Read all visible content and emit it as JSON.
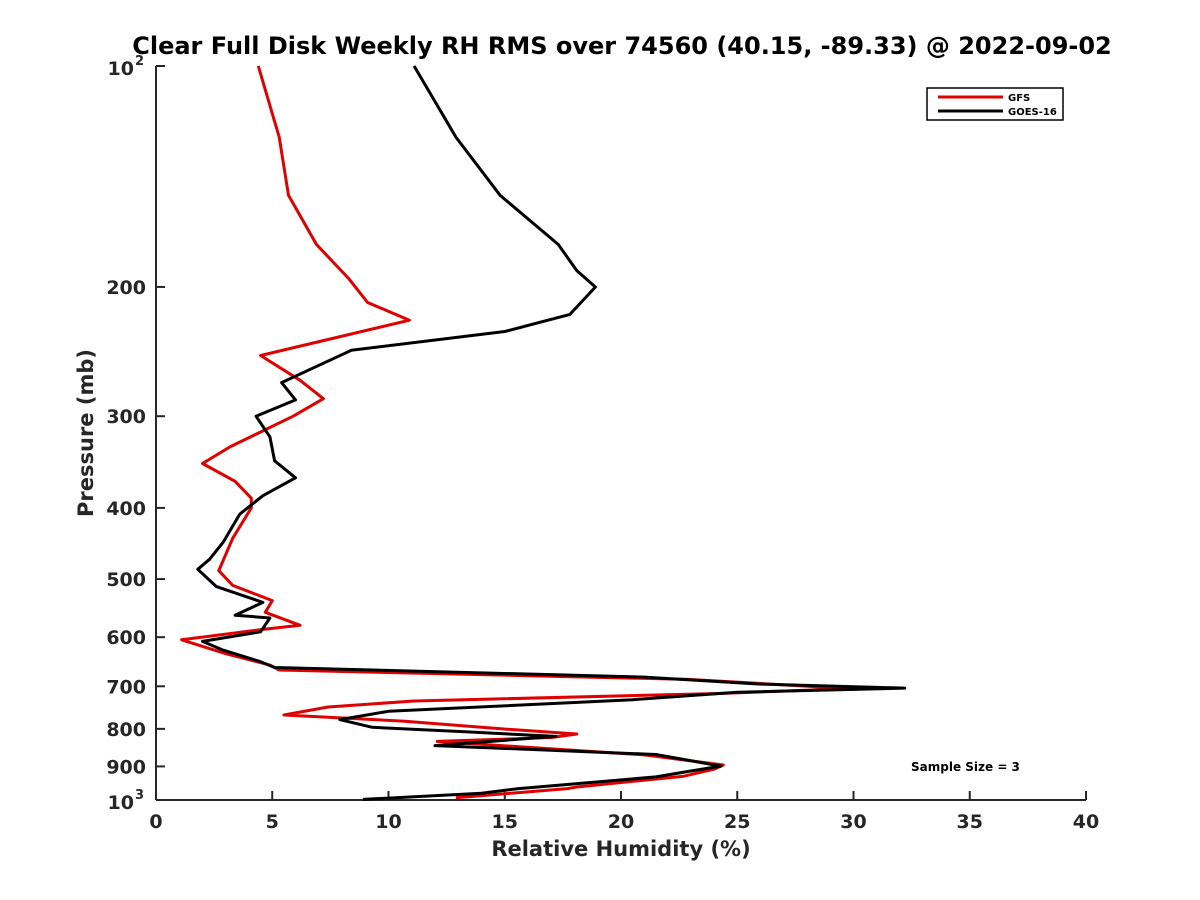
{
  "chart_data": {
    "type": "line",
    "title": "Clear Full Disk Weekly RH RMS over 74560 (40.15, -89.33) @ 2022-09-02",
    "xlabel": "Relative Humidity (%)",
    "ylabel": "Pressure (mb)",
    "xlim": [
      0,
      40
    ],
    "ylim": [
      100,
      1000
    ],
    "y_scale": "log",
    "y_reversed": true,
    "grid": false,
    "legend_position": "top-right",
    "x_ticks": [
      "0",
      "5",
      "10",
      "15",
      "20",
      "25",
      "30",
      "35",
      "40"
    ],
    "y_ticks": [
      {
        "value": 100,
        "label": "10",
        "exponent": "2"
      },
      {
        "value": 200,
        "label": "200"
      },
      {
        "value": 300,
        "label": "300"
      },
      {
        "value": 400,
        "label": "400"
      },
      {
        "value": 500,
        "label": "500"
      },
      {
        "value": 600,
        "label": "600"
      },
      {
        "value": 700,
        "label": "700"
      },
      {
        "value": 800,
        "label": "800"
      },
      {
        "value": 900,
        "label": "900"
      },
      {
        "value": 1000,
        "label": "10",
        "exponent": "3"
      }
    ],
    "series": [
      {
        "name": "GFS",
        "color": "#e00000",
        "points": [
          [
            4.4,
            100
          ],
          [
            5.3,
            125
          ],
          [
            5.7,
            150
          ],
          [
            6.9,
            175
          ],
          [
            8.3,
            195
          ],
          [
            9.1,
            210
          ],
          [
            10.9,
            222
          ],
          [
            4.5,
            248
          ],
          [
            6.2,
            268
          ],
          [
            7.2,
            284
          ],
          [
            5.9,
            300
          ],
          [
            3.2,
            330
          ],
          [
            2.0,
            348
          ],
          [
            3.4,
            368
          ],
          [
            4.1,
            388
          ],
          [
            4.1,
            400
          ],
          [
            3.3,
            440
          ],
          [
            2.7,
            487
          ],
          [
            3.3,
            510
          ],
          [
            5.0,
            535
          ],
          [
            4.7,
            555
          ],
          [
            6.2,
            578
          ],
          [
            4.7,
            585
          ],
          [
            1.1,
            605
          ],
          [
            3.0,
            632
          ],
          [
            4.9,
            655
          ],
          [
            5.3,
            665
          ],
          [
            22.9,
            685
          ],
          [
            29.8,
            705
          ],
          [
            24.2,
            716
          ],
          [
            11.1,
            733
          ],
          [
            7.4,
            747
          ],
          [
            5.5,
            766
          ],
          [
            10.7,
            781
          ],
          [
            14.9,
            800
          ],
          [
            18.1,
            813
          ],
          [
            17.0,
            822
          ],
          [
            12.1,
            832
          ],
          [
            21.0,
            868
          ],
          [
            24.4,
            896
          ],
          [
            24.0,
            908
          ],
          [
            22.7,
            928
          ],
          [
            18.1,
            960
          ],
          [
            17.7,
            965
          ],
          [
            12.9,
            993
          ]
        ]
      },
      {
        "name": "GOES-16",
        "color": "#000000",
        "points": [
          [
            11.1,
            100
          ],
          [
            12.9,
            125
          ],
          [
            14.8,
            150
          ],
          [
            17.3,
            175
          ],
          [
            18.1,
            190
          ],
          [
            18.9,
            200
          ],
          [
            17.8,
            218
          ],
          [
            15.0,
            230
          ],
          [
            8.4,
            244
          ],
          [
            5.4,
            270
          ],
          [
            6.0,
            285
          ],
          [
            4.3,
            300
          ],
          [
            4.9,
            320
          ],
          [
            5.1,
            345
          ],
          [
            6.0,
            364
          ],
          [
            4.6,
            385
          ],
          [
            3.6,
            408
          ],
          [
            2.9,
            445
          ],
          [
            2.3,
            470
          ],
          [
            1.8,
            485
          ],
          [
            2.6,
            512
          ],
          [
            4.6,
            538
          ],
          [
            3.4,
            560
          ],
          [
            4.9,
            565
          ],
          [
            4.5,
            590
          ],
          [
            2.0,
            608
          ],
          [
            2.9,
            625
          ],
          [
            4.5,
            648
          ],
          [
            5.1,
            660
          ],
          [
            21.0,
            680
          ],
          [
            25.9,
            695
          ],
          [
            32.2,
            704
          ],
          [
            25.0,
            713
          ],
          [
            20.5,
            730
          ],
          [
            10.0,
            757
          ],
          [
            7.9,
            777
          ],
          [
            9.3,
            796
          ],
          [
            13.5,
            808
          ],
          [
            17.2,
            819
          ],
          [
            12.0,
            843
          ],
          [
            21.5,
            867
          ],
          [
            24.3,
            899
          ],
          [
            23.0,
            913
          ],
          [
            21.5,
            930
          ],
          [
            15.6,
            965
          ],
          [
            14.0,
            979
          ],
          [
            8.9,
            998
          ]
        ]
      }
    ],
    "annotations": [
      {
        "text": "Sample Size = 3"
      }
    ]
  }
}
